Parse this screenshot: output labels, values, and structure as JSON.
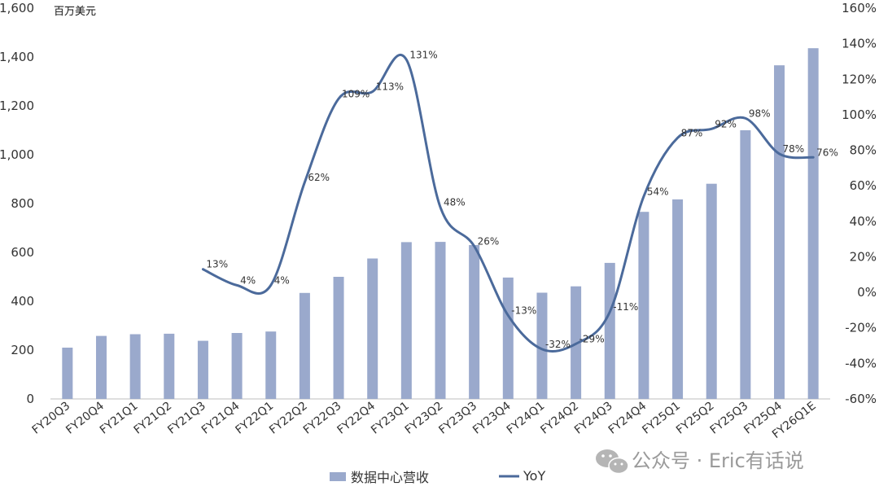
{
  "chart_data": {
    "type": "bar",
    "y_unit_label": "百万美元",
    "categories": [
      "FY20Q3",
      "FY20Q4",
      "FY21Q1",
      "FY21Q2",
      "FY21Q3",
      "FY21Q4",
      "FY22Q1",
      "FY22Q2",
      "FY22Q3",
      "FY22Q4",
      "FY23Q1",
      "FY23Q2",
      "FY23Q3",
      "FY23Q4",
      "FY24Q1",
      "FY24Q2",
      "FY24Q3",
      "FY24Q4",
      "FY25Q1",
      "FY25Q2",
      "FY25Q3",
      "FY25Q4",
      "FY26Q1E"
    ],
    "series": [
      {
        "name": "数据中心营收",
        "type": "bar",
        "axis": "left",
        "color": "#9aa9cc",
        "values": [
          210,
          258,
          265,
          267,
          238,
          270,
          276,
          434,
          500,
          575,
          642,
          643,
          630,
          497,
          435,
          461,
          557,
          766,
          817,
          881,
          1100,
          1366,
          1436
        ]
      },
      {
        "name": "YoY",
        "type": "line",
        "axis": "right",
        "color": "#4b6a9b",
        "values": [
          null,
          null,
          null,
          null,
          13,
          4,
          4,
          62,
          109,
          113,
          131,
          48,
          26,
          -13,
          -32,
          -29,
          -11,
          54,
          87,
          92,
          98,
          78,
          76
        ],
        "labels": [
          "",
          "",
          "",
          "",
          "13%",
          "4%",
          "4%",
          "62%",
          "109%",
          "113%",
          "131%",
          "48%",
          "26%",
          "-13%",
          "-32%",
          "-29%",
          "-11%",
          "54%",
          "87%",
          "92%",
          "98%",
          "78%",
          "76%"
        ]
      }
    ],
    "y_left": {
      "ylim": [
        0,
        1600
      ],
      "ticks": [
        "0",
        "200",
        "400",
        "600",
        "800",
        "1,000",
        "1,200",
        "1,400",
        "1,600"
      ]
    },
    "y_right": {
      "ylim": [
        -60,
        160
      ],
      "ticks": [
        "-60%",
        "-40%",
        "-20%",
        "0%",
        "20%",
        "40%",
        "60%",
        "80%",
        "100%",
        "120%",
        "140%",
        "160%"
      ]
    },
    "grid": false,
    "legend_position": "bottom"
  },
  "watermark": "公众号 · Eric有话说"
}
